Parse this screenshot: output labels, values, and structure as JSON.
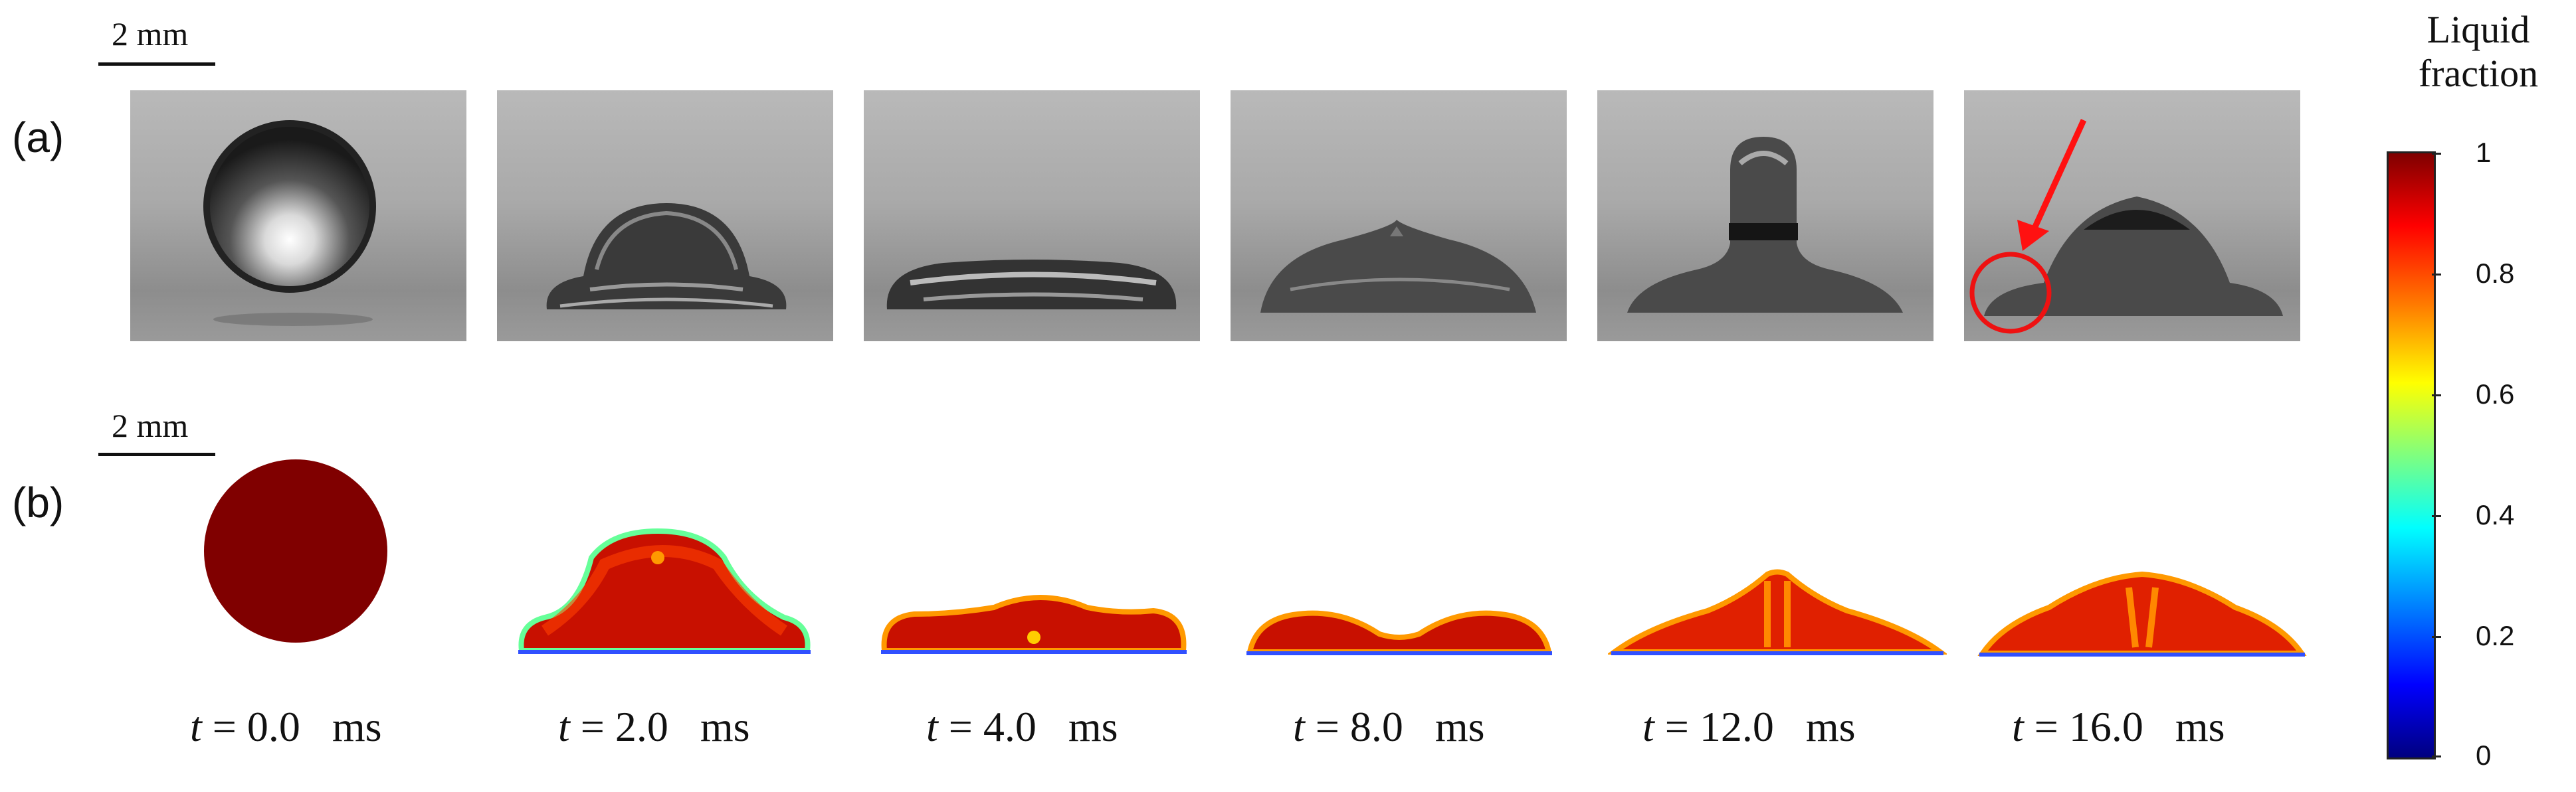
{
  "scale_bar_a": "2  mm",
  "scale_bar_b": "2  mm",
  "panel_a": "(a)",
  "panel_b": "(b)",
  "frames": [
    {
      "t": "t",
      "eq": " = 0.0",
      "unit": "ms"
    },
    {
      "t": "t",
      "eq": " = 2.0",
      "unit": "ms"
    },
    {
      "t": "t",
      "eq": " = 4.0",
      "unit": "ms"
    },
    {
      "t": "t",
      "eq": " = 8.0",
      "unit": "ms"
    },
    {
      "t": "t",
      "eq": " = 12.0",
      "unit": "ms"
    },
    {
      "t": "t",
      "eq": " = 16.0",
      "unit": "ms"
    }
  ],
  "colorbar": {
    "title_line1": "Liquid",
    "title_line2": "fraction",
    "ticks": [
      "1",
      "0.8",
      "0.6",
      "0.4",
      "0.2",
      "0"
    ],
    "colors": [
      "#7f0000",
      "#ff0000",
      "#ff7a00",
      "#ffff00",
      "#00ffff",
      "#0000ff",
      "#00007f"
    ]
  }
}
